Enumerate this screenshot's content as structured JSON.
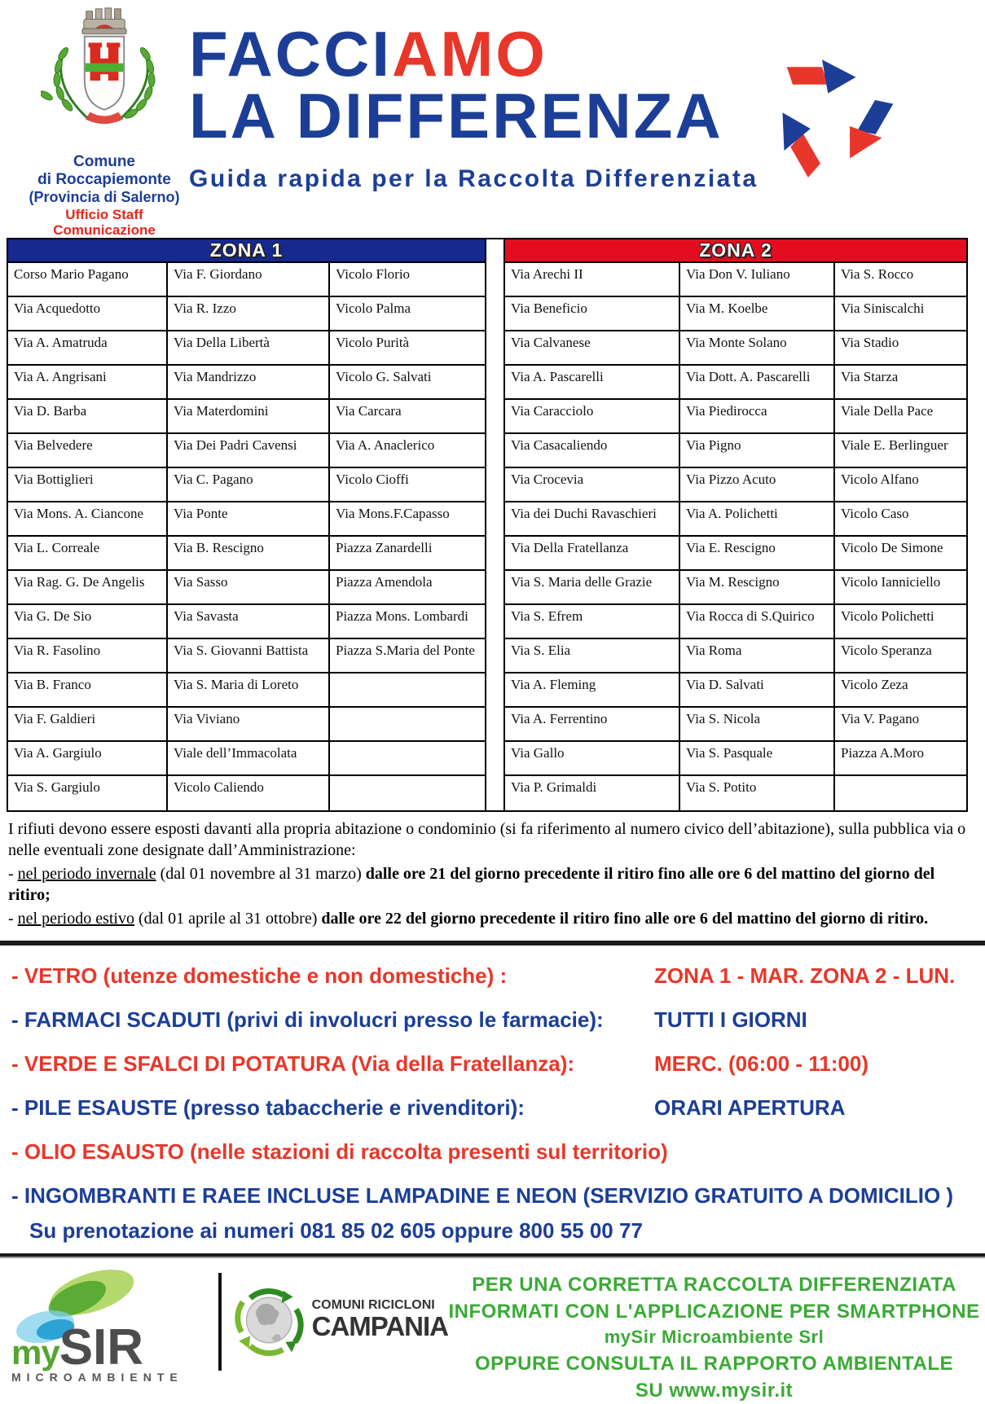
{
  "header": {
    "municipality": {
      "line1": "Comune",
      "line2": "di Roccapiemonte",
      "line3": "(Provincia di Salerno)",
      "office1": "Ufficio Staff",
      "office2": "Comunicazione"
    },
    "title_part1": "FACCI",
    "title_part2": "AMO",
    "title_line2": "LA DIFFERENZA",
    "subtitle": "Guida rapida per la Raccolta Differenziata"
  },
  "colors": {
    "blue": "#1c3e96",
    "red": "#e8372a",
    "header_blue": "#15298f",
    "header_red": "#e40d1f",
    "green": "#3aaa35"
  },
  "table": {
    "zone1": {
      "header": "ZONA 1",
      "rows": [
        [
          "Corso Mario Pagano",
          "Via F. Giordano",
          "Vicolo Florio"
        ],
        [
          "Via Acquedotto",
          "Via R. Izzo",
          "Vicolo Palma"
        ],
        [
          "Via A. Amatruda",
          "Via Della Libertà",
          "Vicolo Purità"
        ],
        [
          "Via A. Angrisani",
          "Via Mandrizzo",
          "Vicolo G. Salvati"
        ],
        [
          "Via D. Barba",
          "Via Materdomini",
          "Via Carcara"
        ],
        [
          "Via Belvedere",
          "Via Dei Padri Cavensi",
          "Via A. Anaclerico"
        ],
        [
          "Via Bottiglieri",
          "Via C. Pagano",
          "Vicolo Cioffi"
        ],
        [
          "Via Mons. A. Ciancone",
          "Via Ponte",
          "Via Mons.F.Capasso"
        ],
        [
          "Via L. Correale",
          "Via B. Rescigno",
          "Piazza Zanardelli"
        ],
        [
          "Via Rag. G. De Angelis",
          "Via Sasso",
          "Piazza Amendola"
        ],
        [
          "Via G. De Sio",
          "Via Savasta",
          "Piazza Mons. Lombardi"
        ],
        [
          "Via R. Fasolino",
          "Via S. Giovanni Battista",
          "Piazza S.Maria del Ponte"
        ],
        [
          "Via B. Franco",
          "Via S. Maria di Loreto",
          ""
        ],
        [
          "Via F. Galdieri",
          "Via Viviano",
          ""
        ],
        [
          "Via A. Gargiulo",
          "Viale dell’Immacolata",
          ""
        ],
        [
          "Via S. Gargiulo",
          "Vicolo Caliendo",
          ""
        ]
      ]
    },
    "zone2": {
      "header": "ZONA 2",
      "rows": [
        [
          "Via Arechi II",
          "Via Don V. Iuliano",
          "Via S. Rocco"
        ],
        [
          "Via Beneficio",
          "Via M. Koelbe",
          "Via Siniscalchi"
        ],
        [
          "Via Calvanese",
          "Via Monte Solano",
          "Via Stadio"
        ],
        [
          "Via A. Pascarelli",
          "Via Dott. A. Pascarelli",
          "Via Starza"
        ],
        [
          "Via Caracciolo",
          "Via Piedirocca",
          "Viale Della Pace"
        ],
        [
          "Via Casacaliendo",
          "Via Pigno",
          "Viale E. Berlinguer"
        ],
        [
          "Via Crocevia",
          "Via Pizzo Acuto",
          "Vicolo Alfano"
        ],
        [
          "Via dei Duchi Ravaschieri",
          "Via A. Polichetti",
          "Vicolo Caso"
        ],
        [
          "Via Della Fratellanza",
          "Via E. Rescigno",
          "Vicolo De Simone"
        ],
        [
          "Via S. Maria delle Grazie",
          "Via M. Rescigno",
          "Vicolo Ianniciello"
        ],
        [
          "Via S. Efrem",
          "Via Rocca di S.Quirico",
          "Vicolo Polichetti"
        ],
        [
          "Via S. Elia",
          "Via Roma",
          "Vicolo Speranza"
        ],
        [
          "Via A. Fleming",
          "Via D. Salvati",
          "Vicolo Zeza"
        ],
        [
          "Via A. Ferrentino",
          "Via S. Nicola",
          "Via V. Pagano"
        ],
        [
          "Via Gallo",
          "Via S. Pasquale",
          "Piazza A.Moro"
        ],
        [
          "Via P. Grimaldi",
          "Via S. Potito",
          ""
        ]
      ]
    }
  },
  "rules": {
    "intro": "I rifiuti devono essere esposti davanti alla propria abitazione o condominio (si fa riferimento al numero civico dell’abitazione), sulla pubblica via o nelle eventuali zone designate dall’Amministrazione:",
    "winter": {
      "dash": "-  ",
      "underlined": "nel periodo invernale",
      "middle": " (dal 01 novembre al 31 marzo) ",
      "bold": "dalle ore 21 del giorno  precedente il ritiro fino alle ore 6 del mattino del giorno del ritiro;"
    },
    "summer": {
      "dash": "- ",
      "underlined": "nel periodo estivo",
      "middle": " (dal 01 aprile al 31 ottobre) ",
      "bold": "dalle ore 22 del giorno precedente il ritiro fino alle ore 6 del mattino del giorno di ritiro."
    }
  },
  "collection_list": [
    {
      "color": "red",
      "left": "- VETRO (utenze domestiche e non domestiche) :",
      "right": "ZONA 1 - MAR. ZONA 2 - LUN.",
      "indent": false,
      "tight": false
    },
    {
      "color": "blue",
      "left": "- FARMACI SCADUTI (privi di involucri presso le farmacie):",
      "right": "TUTTI I GIORNI",
      "indent": false,
      "tight": false
    },
    {
      "color": "red",
      "left": "- VERDE E SFALCI DI POTATURA (Via della Fratellanza):",
      "right": "MERC. (06:00 - 11:00)",
      "indent": false,
      "tight": false
    },
    {
      "color": "blue",
      "left": "- PILE ESAUSTE (presso tabaccherie e rivenditori):",
      "right": "ORARI APERTURA",
      "indent": false,
      "tight": false
    },
    {
      "color": "red",
      "left": "- OLIO ESAUSTO (nelle stazioni di raccolta presenti sul territorio)",
      "right": "",
      "indent": false,
      "tight": false
    },
    {
      "color": "blue",
      "left": "- INGOMBRANTI E RAEE INCLUSE LAMPADINE E NEON (SERVIZIO GRATUITO A DOMICILIO )",
      "right": "",
      "indent": false,
      "tight": true
    },
    {
      "color": "blue",
      "left": "Su prenotazione ai numeri 081 85 02 605 oppure 800 55 00 77",
      "right": "",
      "indent": true,
      "tight": true
    }
  ],
  "footer": {
    "mysir": {
      "my": "my",
      "sir": "SIR",
      "sub": "MICROAMBIENTE"
    },
    "campania": {
      "line1": "COMUNI RICICLONI",
      "line2": "CAMPANIA"
    },
    "green_lines": [
      "PER UNA CORRETTA RACCOLTA DIFFERENZIATA",
      "INFORMATI CON L'APPLICAZIONE PER SMARTPHONE",
      "mySir Microambiente Srl",
      "OPPURE CONSULTA IL RAPPORTO AMBIENTALE",
      "SU www.mysir.it"
    ]
  }
}
